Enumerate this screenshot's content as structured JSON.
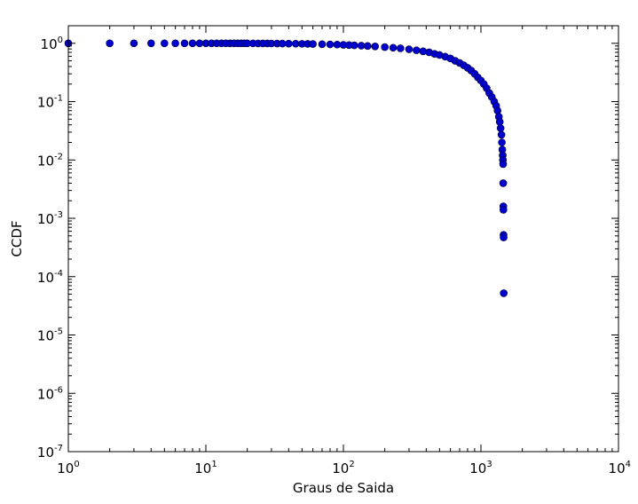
{
  "chart_data": {
    "type": "scatter",
    "title": "",
    "xlabel": "Graus de Saida",
    "ylabel": "CCDF",
    "xscale": "log",
    "yscale": "log",
    "xlim": [
      1,
      10000
    ],
    "ylim": [
      1e-07,
      2
    ],
    "grid": false,
    "legend": "none",
    "x_ticks": [
      {
        "value": 1,
        "base": "10",
        "exp": "0"
      },
      {
        "value": 10,
        "base": "10",
        "exp": "1"
      },
      {
        "value": 100,
        "base": "10",
        "exp": "2"
      },
      {
        "value": 1000,
        "base": "10",
        "exp": "3"
      },
      {
        "value": 10000,
        "base": "10",
        "exp": "4"
      }
    ],
    "y_ticks": [
      {
        "value": 1,
        "base": "10",
        "exp": "0"
      },
      {
        "value": 0.1,
        "base": "10",
        "exp": "-1"
      },
      {
        "value": 0.01,
        "base": "10",
        "exp": "-2"
      },
      {
        "value": 0.001,
        "base": "10",
        "exp": "-3"
      },
      {
        "value": 0.0001,
        "base": "10",
        "exp": "-4"
      },
      {
        "value": 1e-05,
        "base": "10",
        "exp": "-5"
      },
      {
        "value": 1e-06,
        "base": "10",
        "exp": "-6"
      },
      {
        "value": 1e-07,
        "base": "10",
        "exp": "-7"
      }
    ],
    "colors": {
      "marker_fill": "#0000cc",
      "marker_edge": "#000033"
    },
    "series": [
      {
        "points": [
          [
            1,
            1.0
          ],
          [
            2,
            0.99995
          ],
          [
            3,
            0.9999
          ],
          [
            4,
            0.99985
          ],
          [
            5,
            0.9998
          ],
          [
            6,
            0.99975
          ],
          [
            7,
            0.9997
          ],
          [
            8,
            0.99965
          ],
          [
            9,
            0.9996
          ],
          [
            10,
            0.9995
          ],
          [
            11,
            0.9994
          ],
          [
            12,
            0.9993
          ],
          [
            13,
            0.9992
          ],
          [
            14,
            0.9991
          ],
          [
            15,
            0.999
          ],
          [
            16,
            0.9989
          ],
          [
            17,
            0.9988
          ],
          [
            18,
            0.9987
          ],
          [
            19,
            0.9986
          ],
          [
            20,
            0.998
          ],
          [
            22,
            0.997
          ],
          [
            24,
            0.996
          ],
          [
            26,
            0.995
          ],
          [
            28,
            0.994
          ],
          [
            30,
            0.993
          ],
          [
            33,
            0.991
          ],
          [
            36,
            0.989
          ],
          [
            40,
            0.987
          ],
          [
            45,
            0.984
          ],
          [
            50,
            0.98
          ],
          [
            55,
            0.977
          ],
          [
            60,
            0.973
          ],
          [
            70,
            0.966
          ],
          [
            80,
            0.958
          ],
          [
            90,
            0.95
          ],
          [
            100,
            0.94
          ],
          [
            110,
            0.932
          ],
          [
            120,
            0.924
          ],
          [
            135,
            0.91
          ],
          [
            150,
            0.9
          ],
          [
            170,
            0.885
          ],
          [
            200,
            0.86
          ],
          [
            230,
            0.84
          ],
          [
            260,
            0.82
          ],
          [
            300,
            0.79
          ],
          [
            340,
            0.76
          ],
          [
            380,
            0.73
          ],
          [
            420,
            0.7
          ],
          [
            460,
            0.66
          ],
          [
            500,
            0.63
          ],
          [
            550,
            0.59
          ],
          [
            600,
            0.55
          ],
          [
            650,
            0.5
          ],
          [
            700,
            0.46
          ],
          [
            750,
            0.42
          ],
          [
            800,
            0.38
          ],
          [
            850,
            0.34
          ],
          [
            900,
            0.3
          ],
          [
            950,
            0.26
          ],
          [
            1000,
            0.23
          ],
          [
            1050,
            0.2
          ],
          [
            1100,
            0.17
          ],
          [
            1150,
            0.14
          ],
          [
            1200,
            0.12
          ],
          [
            1250,
            0.1
          ],
          [
            1290,
            0.085
          ],
          [
            1320,
            0.07
          ],
          [
            1350,
            0.055
          ],
          [
            1370,
            0.045
          ],
          [
            1390,
            0.035
          ],
          [
            1410,
            0.027
          ],
          [
            1420,
            0.02
          ],
          [
            1430,
            0.015
          ],
          [
            1440,
            0.012
          ],
          [
            1445,
            0.01
          ],
          [
            1450,
            0.0085
          ],
          [
            1452,
            0.004
          ],
          [
            1455,
            0.0016
          ],
          [
            1457,
            0.0014
          ],
          [
            1460,
            0.00052
          ],
          [
            1462,
            0.00047
          ],
          [
            1465,
            5.2e-05
          ]
        ]
      }
    ]
  }
}
